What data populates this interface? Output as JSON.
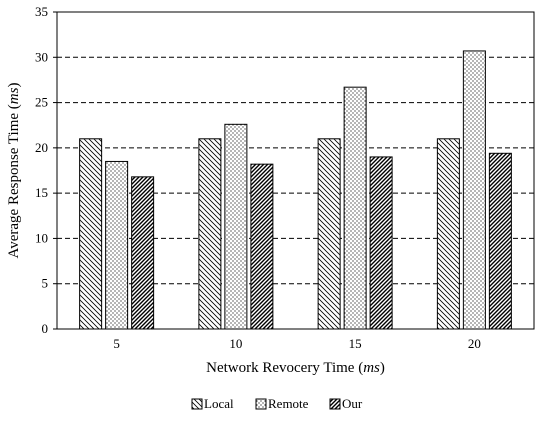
{
  "chart_data": {
    "type": "bar",
    "title": "",
    "xlabel": "Network Revocery Time ",
    "xlabel_unit": "ms",
    "ylabel": "Average Response Time ",
    "ylabel_unit": "ms",
    "categories": [
      "5",
      "10",
      "15",
      "20"
    ],
    "ylim": [
      0,
      35
    ],
    "yticks": [
      0,
      5,
      10,
      15,
      20,
      25,
      30,
      35
    ],
    "grid": "horizontal-dashed",
    "legend_position": "bottom",
    "series": [
      {
        "name": "Local",
        "values": [
          21.0,
          21.0,
          21.0,
          21.0
        ],
        "pattern": "diagonal-back"
      },
      {
        "name": "Remote",
        "values": [
          18.5,
          22.6,
          26.7,
          30.7
        ],
        "pattern": "dots"
      },
      {
        "name": "Our",
        "values": [
          16.8,
          18.2,
          19.0,
          19.4
        ],
        "pattern": "diagonal-forward-dense"
      }
    ]
  }
}
